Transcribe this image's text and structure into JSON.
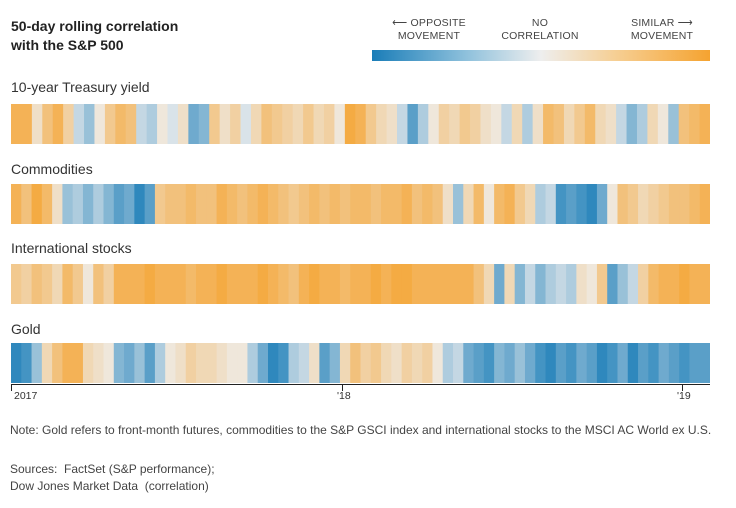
{
  "title_line1": "50-day rolling correlation",
  "title_line2": "with the S&P 500",
  "legend": {
    "left_line1": "⟵ OPPOSITE",
    "left_line2": "MOVEMENT",
    "mid_line1": "NO",
    "mid_line2": "CORRELATION",
    "right_line1": "SIMILAR ⟶",
    "right_line2": "MOVEMENT",
    "colors": {
      "negative": "#1a7db8",
      "neutral": "#eeeeee",
      "positive": "#f5a330"
    }
  },
  "chart_data": {
    "type": "heatmap",
    "value_range": [
      -1,
      1
    ],
    "x_ticks": [
      "2017",
      "'18",
      "'19"
    ],
    "series": [
      {
        "name": "10-year Treasury yield",
        "values": [
          0.8,
          0.8,
          0.2,
          0.6,
          0.8,
          0.4,
          -0.2,
          -0.4,
          0.1,
          0.5,
          0.7,
          0.6,
          -0.2,
          -0.3,
          0.1,
          -0.1,
          0.2,
          -0.6,
          -0.5,
          0.5,
          0.2,
          0.4,
          -0.1,
          0.3,
          0.6,
          0.5,
          0.4,
          0.3,
          0.5,
          0.3,
          0.4,
          0.1,
          0.9,
          0.8,
          0.5,
          0.3,
          0.2,
          -0.2,
          -0.7,
          -0.3,
          0.1,
          0.4,
          0.3,
          0.5,
          0.4,
          0.2,
          0.1,
          -0.2,
          0.3,
          -0.3,
          0.2,
          0.7,
          0.6,
          0.3,
          0.5,
          0.7,
          0.3,
          0.2,
          -0.2,
          -0.5,
          -0.3,
          0.3,
          0.1,
          -0.4,
          0.6,
          0.7,
          0.8
        ]
      },
      {
        "name": "Commodities",
        "values": [
          0.8,
          0.6,
          0.9,
          0.7,
          0.2,
          -0.4,
          -0.3,
          -0.5,
          -0.3,
          -0.5,
          -0.7,
          -0.6,
          -0.9,
          -0.7,
          0.5,
          0.6,
          0.6,
          0.7,
          0.6,
          0.6,
          0.8,
          0.7,
          0.6,
          0.7,
          0.8,
          0.7,
          0.6,
          0.5,
          0.6,
          0.7,
          0.6,
          0.7,
          0.6,
          0.7,
          0.7,
          0.6,
          0.7,
          0.7,
          0.8,
          0.6,
          0.7,
          0.6,
          0.2,
          -0.4,
          0.3,
          0.7,
          0.1,
          0.7,
          0.8,
          0.5,
          0.3,
          -0.3,
          -0.2,
          -0.8,
          -0.7,
          -0.8,
          -0.9,
          -0.6,
          0.1,
          0.6,
          0.5,
          0.3,
          0.4,
          0.5,
          0.6,
          0.6,
          0.7,
          0.8
        ]
      },
      {
        "name": "International stocks",
        "values": [
          0.5,
          0.4,
          0.6,
          0.5,
          0.3,
          0.7,
          0.5,
          0.1,
          0.6,
          0.4,
          0.8,
          0.8,
          0.8,
          0.9,
          0.8,
          0.8,
          0.8,
          0.7,
          0.8,
          0.8,
          0.9,
          0.8,
          0.8,
          0.8,
          0.9,
          0.8,
          0.7,
          0.6,
          0.8,
          0.9,
          0.8,
          0.8,
          0.7,
          0.8,
          0.8,
          0.9,
          0.8,
          0.9,
          0.9,
          0.8,
          0.8,
          0.8,
          0.8,
          0.8,
          0.8,
          0.6,
          0.3,
          -0.6,
          0.3,
          -0.5,
          -0.2,
          -0.5,
          -0.3,
          -0.2,
          -0.3,
          0.2,
          0.1,
          0.5,
          -0.7,
          -0.4,
          -0.2,
          0.4,
          0.7,
          0.8,
          0.8,
          0.9,
          0.8,
          0.8
        ]
      },
      {
        "name": "Gold",
        "values": [
          -0.9,
          -0.8,
          -0.4,
          0.3,
          0.6,
          0.8,
          0.8,
          0.3,
          0.2,
          0.1,
          -0.5,
          -0.6,
          -0.4,
          -0.7,
          -0.3,
          0.1,
          0.2,
          0.4,
          0.3,
          0.3,
          0.2,
          0.1,
          0.1,
          -0.3,
          -0.6,
          -0.9,
          -0.8,
          -0.3,
          -0.2,
          0.2,
          -0.7,
          -0.5,
          0.3,
          0.6,
          0.4,
          0.5,
          0.3,
          0.2,
          0.4,
          0.3,
          0.4,
          0.1,
          -0.3,
          -0.2,
          -0.6,
          -0.7,
          -0.8,
          -0.5,
          -0.6,
          -0.4,
          -0.6,
          -0.8,
          -0.9,
          -0.7,
          -0.8,
          -0.6,
          -0.7,
          -0.9,
          -0.8,
          -0.6,
          -0.9,
          -0.7,
          -0.8,
          -0.6,
          -0.7,
          -0.8,
          -0.7,
          -0.7
        ]
      }
    ]
  },
  "note": "Note: Gold refers to front-month futures, commodities to the S&P GSCI index and international stocks to the MSCI AC World ex U.S.",
  "sources_line1": "Sources:  FactSet (S&P performance);",
  "sources_line2": "Dow Jones Market Data  (correlation)"
}
